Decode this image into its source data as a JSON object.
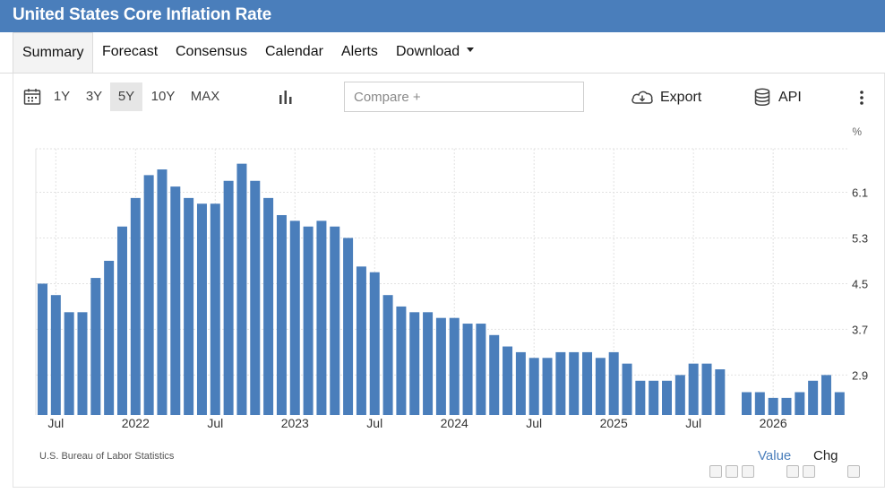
{
  "title": "United States Core Inflation Rate",
  "tabs": [
    {
      "label": "Summary"
    },
    {
      "label": "Forecast"
    },
    {
      "label": "Consensus"
    },
    {
      "label": "Calendar"
    },
    {
      "label": "Alerts"
    },
    {
      "label": "Download"
    }
  ],
  "toolbar": {
    "ranges": [
      "1Y",
      "3Y",
      "5Y",
      "10Y",
      "MAX"
    ],
    "active_range": "5Y",
    "compare_placeholder": "Compare +",
    "export_label": "Export",
    "api_label": "API",
    "icons": [
      "calendar-icon",
      "bar-chart-icon",
      "cloud-download-icon",
      "database-icon",
      "more-vertical-icon"
    ]
  },
  "chart_data": {
    "type": "bar",
    "unit": "%",
    "color": "#4a7ebb",
    "start": "2021-06",
    "values": [
      4.5,
      4.3,
      4.0,
      4.0,
      4.6,
      4.9,
      5.5,
      6.0,
      6.4,
      6.5,
      6.2,
      6.0,
      5.9,
      5.9,
      6.3,
      6.6,
      6.3,
      6.0,
      5.7,
      5.6,
      5.5,
      5.6,
      5.5,
      5.3,
      4.8,
      4.7,
      4.3,
      4.1,
      4.0,
      4.0,
      3.9,
      3.9,
      3.8,
      3.8,
      3.6,
      3.4,
      3.3,
      3.2,
      3.2,
      3.3,
      3.3,
      3.3,
      3.2,
      3.3,
      3.1,
      2.8,
      2.8,
      2.8,
      2.9,
      3.1,
      3.1,
      3.0,
      null,
      2.6,
      2.6,
      2.5,
      2.5,
      2.6,
      2.8,
      2.9,
      2.6
    ],
    "x_tick_labels": [
      "Jul",
      "2022",
      "Jul",
      "2023",
      "Jul",
      "2024",
      "Jul",
      "2025",
      "Jul",
      "2026"
    ],
    "y_ticks": [
      2.9,
      3.7,
      4.5,
      5.3,
      6.1
    ],
    "ylim": [
      2.2,
      7.0
    ],
    "grid": true
  },
  "unit_label": "%",
  "source": "U.S. Bureau of Labor Statistics",
  "legend": {
    "value_label": "Value",
    "chg_label": "Chg"
  }
}
